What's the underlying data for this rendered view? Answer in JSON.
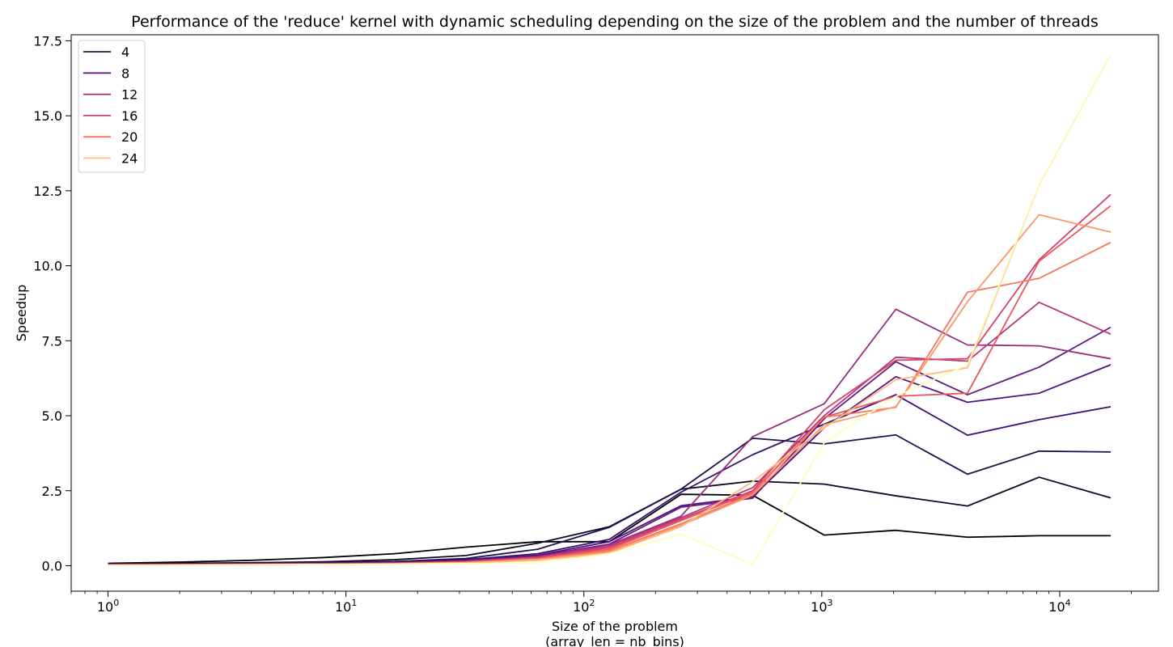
{
  "chart_data": {
    "type": "line",
    "title": "Performance of the 'reduce' kernel with dynamic scheduling depending on the size of the problem and the number of threads",
    "xlabel_line1": "Size of the problem",
    "xlabel_line2": "(array_len = nb_bins)",
    "ylabel": "Speedup",
    "xscale": "log",
    "xlim": [
      0.7,
      26000
    ],
    "ylim": [
      -0.85,
      17.7
    ],
    "x_major_ticks": [
      1,
      10,
      100,
      1000,
      10000
    ],
    "x_tick_labels": [
      {
        "base": "10",
        "exp": "0"
      },
      {
        "base": "10",
        "exp": "1"
      },
      {
        "base": "10",
        "exp": "2"
      },
      {
        "base": "10",
        "exp": "3"
      },
      {
        "base": "10",
        "exp": "4"
      }
    ],
    "y_ticks": [
      0.0,
      2.5,
      5.0,
      7.5,
      10.0,
      12.5,
      15.0,
      17.5
    ],
    "y_tick_labels": [
      "0.0",
      "2.5",
      "5.0",
      "7.5",
      "10.0",
      "12.5",
      "15.0",
      "17.5"
    ],
    "grid": false,
    "legend_position": "top-left",
    "x": [
      1,
      2,
      4,
      8,
      16,
      32,
      64,
      128,
      256,
      512,
      1024,
      2048,
      4096,
      8192,
      16384
    ],
    "legend": [
      {
        "label": "4",
        "color": "#221150"
      },
      {
        "label": "8",
        "color": "#5f187f"
      },
      {
        "label": "12",
        "color": "#982d80"
      },
      {
        "label": "16",
        "color": "#d3436e"
      },
      {
        "label": "20",
        "color": "#f8765c"
      },
      {
        "label": "24",
        "color": "#febb81"
      }
    ],
    "series": [
      {
        "color": "#000004",
        "values": [
          0.08,
          0.12,
          0.18,
          0.27,
          0.4,
          0.62,
          0.8,
          0.8,
          2.38,
          2.35,
          1.02,
          1.18,
          0.95,
          1.0,
          1.0
        ]
      },
      {
        "color": "#0c0826",
        "values": [
          0.07,
          0.08,
          0.1,
          0.13,
          0.2,
          0.34,
          0.75,
          1.3,
          2.55,
          2.82,
          2.72,
          2.33,
          1.99,
          2.95,
          2.26
        ]
      },
      {
        "color": "#221150",
        "values": [
          0.06,
          0.07,
          0.08,
          0.1,
          0.14,
          0.24,
          0.55,
          1.28,
          2.55,
          4.25,
          4.06,
          4.36,
          3.05,
          3.82,
          3.79
        ]
      },
      {
        "color": "#3b0f70",
        "values": [
          0.05,
          0.06,
          0.07,
          0.09,
          0.12,
          0.2,
          0.4,
          0.88,
          2.45,
          3.7,
          4.72,
          5.7,
          4.35,
          4.87,
          5.3
        ]
      },
      {
        "color": "#51127c",
        "values": [
          0.04,
          0.05,
          0.06,
          0.08,
          0.11,
          0.18,
          0.35,
          0.8,
          2.0,
          2.3,
          4.6,
          6.3,
          5.45,
          5.75,
          6.7
        ]
      },
      {
        "color": "#641a80",
        "values": [
          0.04,
          0.05,
          0.06,
          0.07,
          0.1,
          0.16,
          0.32,
          0.72,
          1.95,
          2.25,
          4.9,
          6.8,
          5.7,
          6.62,
          7.95
        ]
      },
      {
        "color": "#982d80",
        "values": [
          0.03,
          0.04,
          0.05,
          0.07,
          0.09,
          0.15,
          0.3,
          0.7,
          1.65,
          4.3,
          5.4,
          8.55,
          7.36,
          7.33,
          6.9
        ]
      },
      {
        "color": "#b73779",
        "values": [
          0.03,
          0.04,
          0.05,
          0.06,
          0.09,
          0.14,
          0.28,
          0.65,
          1.6,
          2.6,
          5.0,
          6.95,
          6.82,
          8.78,
          7.72
        ]
      },
      {
        "color": "#d3436e",
        "values": [
          0.03,
          0.04,
          0.05,
          0.06,
          0.08,
          0.13,
          0.26,
          0.6,
          1.55,
          2.5,
          5.2,
          6.85,
          6.9,
          10.2,
          12.38
        ]
      },
      {
        "color": "#eb5760",
        "values": [
          0.02,
          0.03,
          0.04,
          0.05,
          0.07,
          0.12,
          0.24,
          0.55,
          1.5,
          2.45,
          4.95,
          5.65,
          5.75,
          10.15,
          12.0
        ]
      },
      {
        "color": "#f8765c",
        "values": [
          0.02,
          0.03,
          0.04,
          0.05,
          0.07,
          0.11,
          0.22,
          0.5,
          1.4,
          2.4,
          4.95,
          5.28,
          9.12,
          9.58,
          10.78
        ]
      },
      {
        "color": "#fd9668",
        "values": [
          0.02,
          0.02,
          0.03,
          0.04,
          0.06,
          0.1,
          0.2,
          0.45,
          1.35,
          2.35,
          4.7,
          5.3,
          8.8,
          11.7,
          11.12
        ]
      },
      {
        "color": "#febb81",
        "values": [
          0.01,
          0.02,
          0.03,
          0.04,
          0.05,
          0.09,
          0.18,
          0.42,
          1.3,
          2.8,
          4.6,
          6.2,
          6.6,
          12.7,
          17.05
        ]
      },
      {
        "color": "#fcfdbf",
        "values": [
          0.01,
          0.02,
          0.03,
          0.04,
          0.05,
          0.07,
          0.09,
          0.4,
          1.05,
          0.05,
          4.1,
          5.65,
          6.7,
          12.72,
          17.05
        ]
      }
    ]
  }
}
